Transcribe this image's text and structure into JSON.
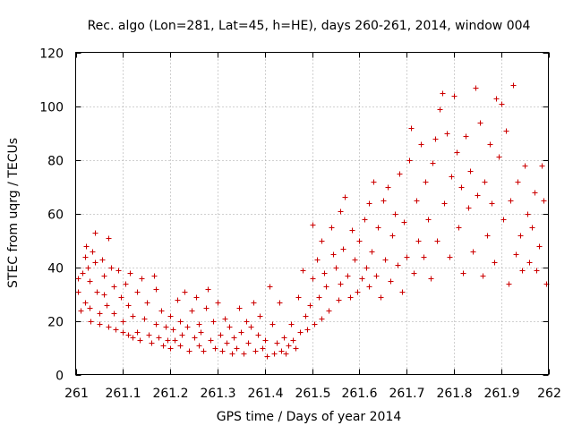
{
  "chart_data": {
    "type": "scatter",
    "title": "Rec. algo (Lon=281, Lat=45, h=HE), days 260-261, 2014, window 004",
    "xlabel": "GPS time / Days of year 2014",
    "ylabel": "STEC from uqrg / TECUs",
    "xlim": [
      261,
      262
    ],
    "ylim": [
      0,
      120
    ],
    "x_ticks": [
      "261",
      "261.1",
      "261.2",
      "261.3",
      "261.4",
      "261.5",
      "261.6",
      "261.7",
      "261.8",
      "261.9",
      "262"
    ],
    "y_ticks": [
      "0",
      "20",
      "40",
      "60",
      "80",
      "100",
      "120"
    ],
    "grid": true,
    "marker": "+",
    "colors": {
      "points": "#cc0000",
      "grid": "#a0a0a0",
      "frame": "#000000"
    },
    "series": [
      {
        "points": [
          [
            261.005,
            36
          ],
          [
            261.005,
            31
          ],
          [
            261.01,
            24
          ],
          [
            261.015,
            38
          ],
          [
            261.02,
            44
          ],
          [
            261.02,
            27
          ],
          [
            261.022,
            48
          ],
          [
            261.025,
            40
          ],
          [
            261.03,
            35
          ],
          [
            261.03,
            25
          ],
          [
            261.032,
            20
          ],
          [
            261.035,
            46
          ],
          [
            261.04,
            53
          ],
          [
            261.04,
            42
          ],
          [
            261.045,
            31
          ],
          [
            261.05,
            23
          ],
          [
            261.05,
            19
          ],
          [
            261.055,
            43
          ],
          [
            261.06,
            37
          ],
          [
            261.06,
            30
          ],
          [
            261.065,
            26
          ],
          [
            261.07,
            51
          ],
          [
            261.07,
            18
          ],
          [
            261.075,
            40
          ],
          [
            261.08,
            33
          ],
          [
            261.08,
            23
          ],
          [
            261.085,
            17
          ],
          [
            261.09,
            39
          ],
          [
            261.095,
            29
          ],
          [
            261.1,
            20
          ],
          [
            261.1,
            16
          ],
          [
            261.105,
            34
          ],
          [
            261.11,
            26
          ],
          [
            261.11,
            15
          ],
          [
            261.115,
            38
          ],
          [
            261.12,
            22
          ],
          [
            261.12,
            14
          ],
          [
            261.13,
            31
          ],
          [
            261.13,
            16
          ],
          [
            261.135,
            13
          ],
          [
            261.14,
            36
          ],
          [
            261.145,
            21
          ],
          [
            261.15,
            27
          ],
          [
            261.155,
            15
          ],
          [
            261.16,
            12
          ],
          [
            261.165,
            37
          ],
          [
            261.17,
            32
          ],
          [
            261.17,
            19
          ],
          [
            261.175,
            14
          ],
          [
            261.18,
            24
          ],
          [
            261.185,
            11
          ],
          [
            261.19,
            18
          ],
          [
            261.195,
            13
          ],
          [
            261.2,
            22
          ],
          [
            261.2,
            10
          ],
          [
            261.205,
            17
          ],
          [
            261.21,
            13
          ],
          [
            261.215,
            28
          ],
          [
            261.22,
            20
          ],
          [
            261.22,
            11
          ],
          [
            261.225,
            15
          ],
          [
            261.23,
            31
          ],
          [
            261.235,
            18
          ],
          [
            261.24,
            9
          ],
          [
            261.245,
            24
          ],
          [
            261.25,
            14
          ],
          [
            261.255,
            29
          ],
          [
            261.26,
            19
          ],
          [
            261.26,
            11
          ],
          [
            261.265,
            16
          ],
          [
            261.27,
            9
          ],
          [
            261.275,
            25
          ],
          [
            261.28,
            32
          ],
          [
            261.285,
            13
          ],
          [
            261.29,
            20
          ],
          [
            261.295,
            10
          ],
          [
            261.3,
            27
          ],
          [
            261.305,
            15
          ],
          [
            261.31,
            9
          ],
          [
            261.315,
            21
          ],
          [
            261.32,
            12
          ],
          [
            261.325,
            18
          ],
          [
            261.33,
            8
          ],
          [
            261.335,
            14
          ],
          [
            261.34,
            10
          ],
          [
            261.345,
            25
          ],
          [
            261.35,
            16
          ],
          [
            261.355,
            8
          ],
          [
            261.36,
            20
          ],
          [
            261.365,
            12
          ],
          [
            261.37,
            18
          ],
          [
            261.375,
            27
          ],
          [
            261.38,
            9
          ],
          [
            261.385,
            15
          ],
          [
            261.39,
            22
          ],
          [
            261.395,
            10
          ],
          [
            261.4,
            13
          ],
          [
            261.405,
            7
          ],
          [
            261.41,
            33
          ],
          [
            261.415,
            19
          ],
          [
            261.42,
            8
          ],
          [
            261.425,
            12
          ],
          [
            261.43,
            27
          ],
          [
            261.435,
            9
          ],
          [
            261.44,
            14
          ],
          [
            261.445,
            8
          ],
          [
            261.45,
            11
          ],
          [
            261.455,
            19
          ],
          [
            261.46,
            13
          ],
          [
            261.465,
            10
          ],
          [
            261.47,
            29
          ],
          [
            261.475,
            16
          ],
          [
            261.48,
            39
          ],
          [
            261.485,
            22
          ],
          [
            261.49,
            17
          ],
          [
            261.495,
            26
          ],
          [
            261.5,
            56
          ],
          [
            261.5,
            36
          ],
          [
            261.505,
            19
          ],
          [
            261.51,
            43
          ],
          [
            261.515,
            29
          ],
          [
            261.52,
            50
          ],
          [
            261.52,
            21
          ],
          [
            261.525,
            38
          ],
          [
            261.53,
            33
          ],
          [
            261.535,
            24
          ],
          [
            261.54,
            55
          ],
          [
            261.545,
            45
          ],
          [
            261.55,
            40
          ],
          [
            261.555,
            28
          ],
          [
            261.56,
            61
          ],
          [
            261.56,
            34
          ],
          [
            261.565,
            47
          ],
          [
            261.57,
            66
          ],
          [
            261.575,
            37
          ],
          [
            261.58,
            29
          ],
          [
            261.585,
            54
          ],
          [
            261.59,
            43
          ],
          [
            261.595,
            31
          ],
          [
            261.6,
            50
          ],
          [
            261.605,
            36
          ],
          [
            261.61,
            58
          ],
          [
            261.615,
            40
          ],
          [
            261.62,
            64
          ],
          [
            261.62,
            33
          ],
          [
            261.625,
            46
          ],
          [
            261.63,
            72
          ],
          [
            261.635,
            37
          ],
          [
            261.64,
            55
          ],
          [
            261.645,
            29
          ],
          [
            261.65,
            65
          ],
          [
            261.655,
            43
          ],
          [
            261.66,
            70
          ],
          [
            261.665,
            35
          ],
          [
            261.67,
            52
          ],
          [
            261.675,
            60
          ],
          [
            261.68,
            41
          ],
          [
            261.685,
            75
          ],
          [
            261.69,
            31
          ],
          [
            261.695,
            57
          ],
          [
            261.7,
            44
          ],
          [
            261.705,
            80
          ],
          [
            261.71,
            92
          ],
          [
            261.715,
            38
          ],
          [
            261.72,
            65
          ],
          [
            261.725,
            50
          ],
          [
            261.73,
            86
          ],
          [
            261.735,
            44
          ],
          [
            261.74,
            72
          ],
          [
            261.745,
            58
          ],
          [
            261.75,
            36
          ],
          [
            261.755,
            79
          ],
          [
            261.76,
            88
          ],
          [
            261.765,
            50
          ],
          [
            261.77,
            99
          ],
          [
            261.775,
            105
          ],
          [
            261.78,
            64
          ],
          [
            261.785,
            90
          ],
          [
            261.79,
            44
          ],
          [
            261.795,
            74
          ],
          [
            261.8,
            104
          ],
          [
            261.805,
            83
          ],
          [
            261.81,
            55
          ],
          [
            261.815,
            70
          ],
          [
            261.82,
            38
          ],
          [
            261.825,
            89
          ],
          [
            261.83,
            62
          ],
          [
            261.835,
            76
          ],
          [
            261.84,
            46
          ],
          [
            261.845,
            107
          ],
          [
            261.85,
            67
          ],
          [
            261.855,
            94
          ],
          [
            261.86,
            37
          ],
          [
            261.865,
            72
          ],
          [
            261.87,
            52
          ],
          [
            261.875,
            86
          ],
          [
            261.88,
            64
          ],
          [
            261.885,
            42
          ],
          [
            261.89,
            103
          ],
          [
            261.895,
            81
          ],
          [
            261.9,
            101
          ],
          [
            261.905,
            58
          ],
          [
            261.91,
            91
          ],
          [
            261.915,
            34
          ],
          [
            261.92,
            65
          ],
          [
            261.925,
            108
          ],
          [
            261.93,
            45
          ],
          [
            261.935,
            72
          ],
          [
            261.94,
            52
          ],
          [
            261.945,
            39
          ],
          [
            261.95,
            78
          ],
          [
            261.955,
            60
          ],
          [
            261.96,
            42
          ],
          [
            261.965,
            55
          ],
          [
            261.97,
            68
          ],
          [
            261.975,
            39
          ],
          [
            261.98,
            48
          ],
          [
            261.985,
            78
          ],
          [
            261.99,
            65
          ],
          [
            261.995,
            34
          ]
        ]
      }
    ]
  }
}
